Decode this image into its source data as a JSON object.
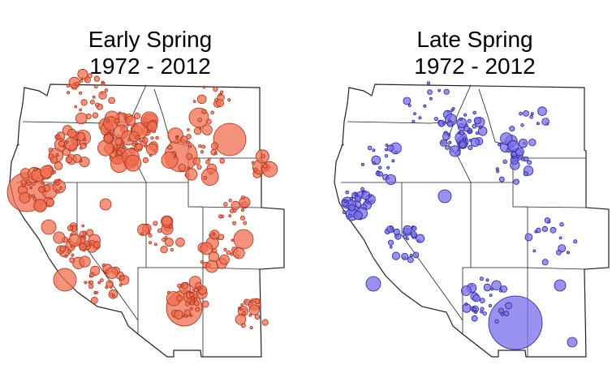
{
  "maps": [
    {
      "title": "Early Spring",
      "subtitle": "1972 - 2012"
    },
    {
      "title": "Late Spring",
      "subtitle": "1972 - 2012"
    }
  ]
}
